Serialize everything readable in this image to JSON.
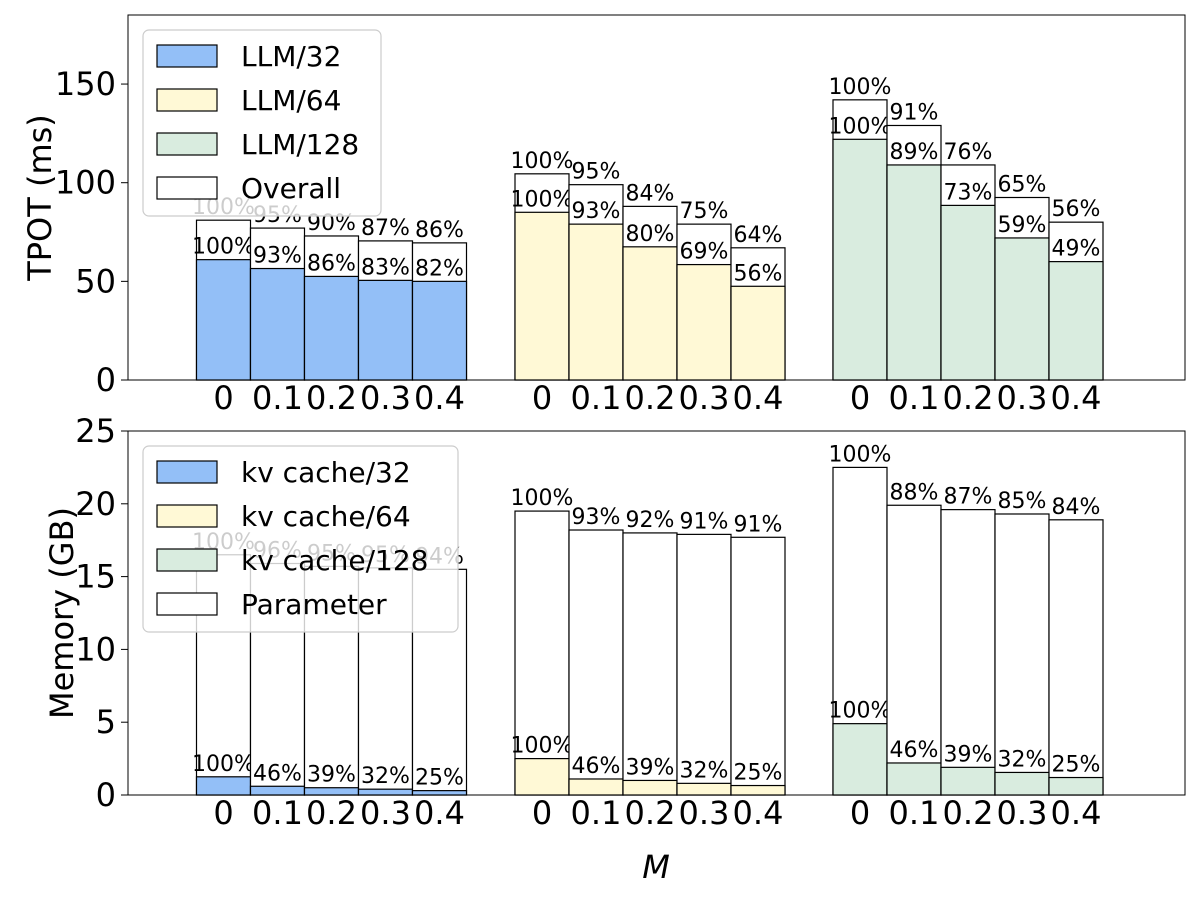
{
  "chart_data": [
    {
      "type": "bar",
      "subtype": "stacked-overlay-grouped",
      "ylabel": "TPOT (ms)",
      "xlabel": "",
      "ylim": [
        0,
        185
      ],
      "yticks": [
        0,
        50,
        100,
        150
      ],
      "grid": false,
      "legend_position": "top-left",
      "legend": [
        "LLM/32",
        "LLM/64",
        "LLM/128",
        "Overall"
      ],
      "categories": [
        "0",
        "0.1",
        "0.2",
        "0.3",
        "0.4"
      ],
      "groups": [
        {
          "name": "32",
          "color": "#93bff7",
          "inner_values": [
            61,
            56.5,
            52.5,
            50.5,
            50
          ],
          "inner_labels": [
            "100%",
            "93%",
            "86%",
            "83%",
            "82%"
          ],
          "total_values": [
            81,
            77,
            73,
            70.5,
            69.5
          ],
          "total_labels": [
            "100%",
            "95%",
            "90%",
            "87%",
            "86%"
          ]
        },
        {
          "name": "64",
          "color": "#fff9d6",
          "inner_values": [
            85,
            79,
            67.5,
            58.5,
            47.5
          ],
          "inner_labels": [
            "100%",
            "93%",
            "80%",
            "69%",
            "56%"
          ],
          "total_values": [
            104.5,
            99,
            88,
            79,
            67
          ],
          "total_labels": [
            "100%",
            "95%",
            "84%",
            "75%",
            "64%"
          ]
        },
        {
          "name": "128",
          "color": "#d9ecdf",
          "inner_values": [
            122,
            109,
            88.5,
            72,
            60
          ],
          "inner_labels": [
            "100%",
            "89%",
            "73%",
            "59%",
            "49%"
          ],
          "total_values": [
            142,
            129,
            109,
            92.5,
            80
          ],
          "total_labels": [
            "100%",
            "91%",
            "76%",
            "65%",
            "56%"
          ]
        }
      ]
    },
    {
      "type": "bar",
      "subtype": "stacked-overlay-grouped",
      "ylabel": "Memory (GB)",
      "xlabel": "M",
      "ylim": [
        0,
        25
      ],
      "yticks": [
        0,
        5,
        10,
        15,
        20,
        25
      ],
      "grid": false,
      "legend_position": "top-left",
      "legend": [
        "kv cache/32",
        "kv cache/64",
        "kv cache/128",
        "Parameter"
      ],
      "categories": [
        "0",
        "0.1",
        "0.2",
        "0.3",
        "0.4"
      ],
      "groups": [
        {
          "name": "32",
          "color": "#93bff7",
          "inner_values": [
            1.25,
            0.6,
            0.5,
            0.4,
            0.3
          ],
          "inner_labels": [
            "100%",
            "46%",
            "39%",
            "32%",
            "25%"
          ],
          "total_values": [
            16.5,
            15.9,
            15.7,
            15.6,
            15.5
          ],
          "total_labels": [
            "100%",
            "96%",
            "95%",
            "95%",
            "94%"
          ]
        },
        {
          "name": "64",
          "color": "#fff9d6",
          "inner_values": [
            2.5,
            1.1,
            1.0,
            0.8,
            0.65
          ],
          "inner_labels": [
            "100%",
            "46%",
            "39%",
            "32%",
            "25%"
          ],
          "total_values": [
            19.5,
            18.2,
            18.0,
            17.9,
            17.7
          ],
          "total_labels": [
            "100%",
            "93%",
            "92%",
            "91%",
            "91%"
          ]
        },
        {
          "name": "128",
          "color": "#d9ecdf",
          "inner_values": [
            4.9,
            2.2,
            1.9,
            1.55,
            1.2
          ],
          "inner_labels": [
            "100%",
            "46%",
            "39%",
            "32%",
            "25%"
          ],
          "total_values": [
            22.5,
            19.9,
            19.6,
            19.3,
            18.9
          ],
          "total_labels": [
            "100%",
            "88%",
            "87%",
            "85%",
            "84%"
          ]
        }
      ]
    }
  ]
}
